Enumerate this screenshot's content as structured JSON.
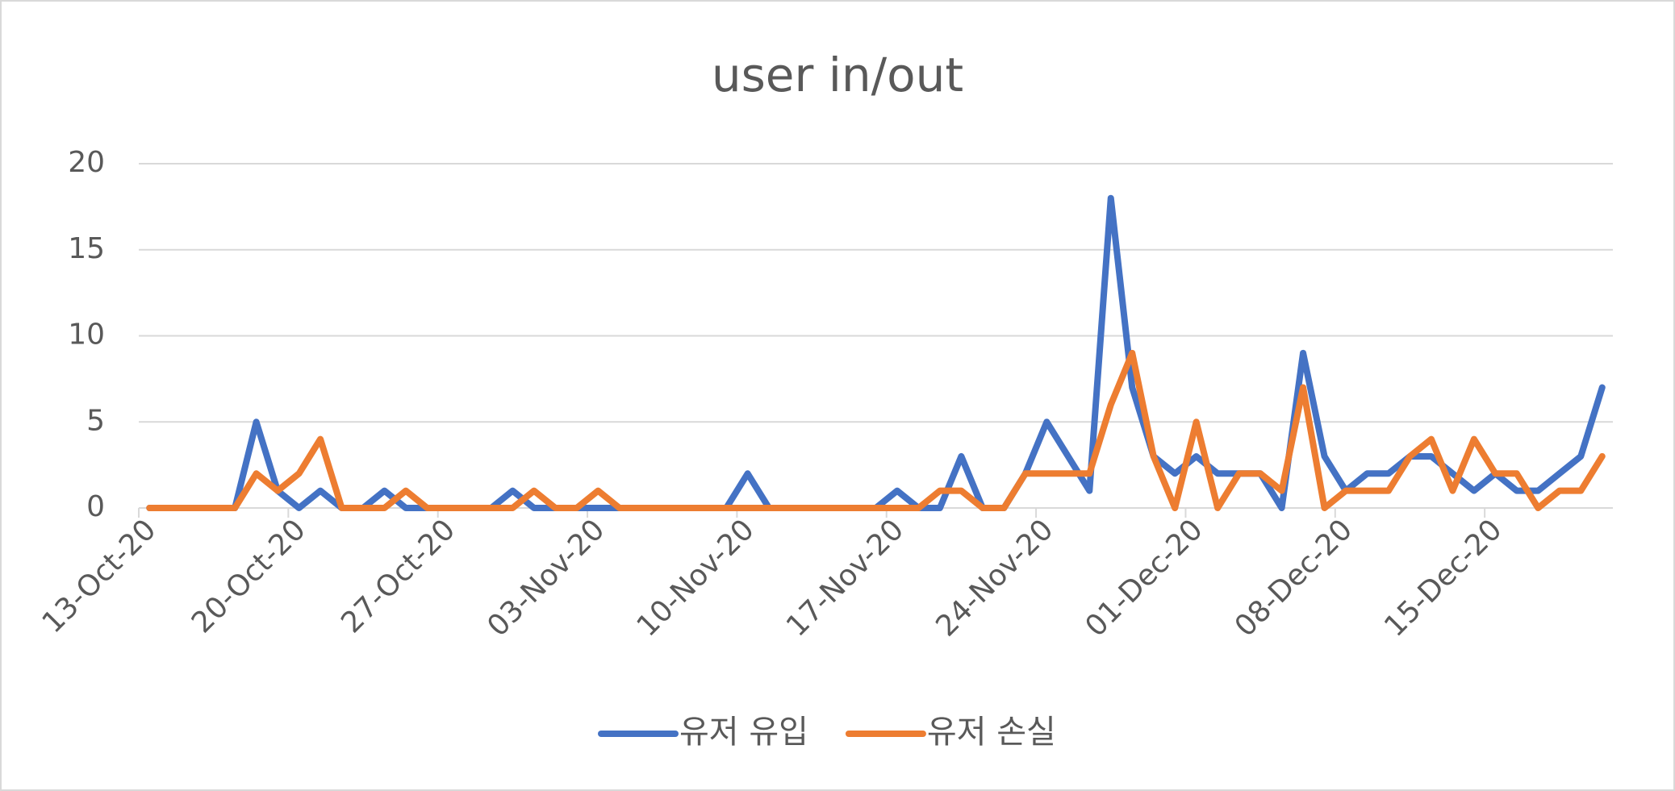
{
  "chart_data": {
    "type": "line",
    "title": "user in/out",
    "x": [
      "2020-10-13",
      "2020-10-14",
      "2020-10-15",
      "2020-10-16",
      "2020-10-17",
      "2020-10-18",
      "2020-10-19",
      "2020-10-20",
      "2020-10-21",
      "2020-10-22",
      "2020-10-23",
      "2020-10-24",
      "2020-10-25",
      "2020-10-26",
      "2020-10-27",
      "2020-10-28",
      "2020-10-29",
      "2020-10-30",
      "2020-10-31",
      "2020-11-01",
      "2020-11-02",
      "2020-11-03",
      "2020-11-04",
      "2020-11-05",
      "2020-11-06",
      "2020-11-07",
      "2020-11-08",
      "2020-11-09",
      "2020-11-10",
      "2020-11-11",
      "2020-11-12",
      "2020-11-13",
      "2020-11-14",
      "2020-11-15",
      "2020-11-16",
      "2020-11-17",
      "2020-11-18",
      "2020-11-19",
      "2020-11-20",
      "2020-11-21",
      "2020-11-22",
      "2020-11-23",
      "2020-11-24",
      "2020-11-25",
      "2020-11-26",
      "2020-11-27",
      "2020-11-28",
      "2020-11-29",
      "2020-11-30",
      "2020-12-01",
      "2020-12-02",
      "2020-12-03",
      "2020-12-04",
      "2020-12-05",
      "2020-12-06",
      "2020-12-07",
      "2020-12-08",
      "2020-12-09",
      "2020-12-10",
      "2020-12-11",
      "2020-12-12",
      "2020-12-13",
      "2020-12-14",
      "2020-12-15",
      "2020-12-16",
      "2020-12-17",
      "2020-12-18",
      "2020-12-19",
      "2020-12-20"
    ],
    "series": [
      {
        "name": "유저 유입",
        "color": "#4472c4",
        "values": [
          0,
          0,
          0,
          0,
          0,
          5,
          1,
          0,
          1,
          0,
          0,
          1,
          0,
          0,
          0,
          0,
          0,
          1,
          0,
          0,
          0,
          0,
          0,
          0,
          0,
          0,
          0,
          0,
          2,
          0,
          0,
          0,
          0,
          0,
          0,
          1,
          0,
          0,
          3,
          0,
          0,
          2,
          5,
          3,
          1,
          18,
          7,
          3,
          2,
          3,
          2,
          2,
          2,
          0,
          9,
          3,
          1,
          2,
          2,
          3,
          3,
          2,
          1,
          2,
          1,
          1,
          2,
          3,
          7
        ]
      },
      {
        "name": "유저 손실",
        "color": "#ed7d31",
        "values": [
          0,
          0,
          0,
          0,
          0,
          2,
          1,
          2,
          4,
          0,
          0,
          0,
          1,
          0,
          0,
          0,
          0,
          0,
          1,
          0,
          0,
          1,
          0,
          0,
          0,
          0,
          0,
          0,
          0,
          0,
          0,
          0,
          0,
          0,
          0,
          0,
          0,
          1,
          1,
          0,
          0,
          2,
          2,
          2,
          2,
          6,
          9,
          3,
          0,
          5,
          0,
          2,
          2,
          1,
          7,
          0,
          1,
          1,
          1,
          3,
          4,
          1,
          4,
          2,
          2,
          0,
          1,
          1,
          3
        ]
      }
    ],
    "xlim": [
      "2020-10-13",
      "2020-12-21"
    ],
    "xticks": [
      {
        "value": "2020-10-13",
        "label": "13-Oct-20"
      },
      {
        "value": "2020-10-20",
        "label": "20-Oct-20"
      },
      {
        "value": "2020-10-27",
        "label": "27-Oct-20"
      },
      {
        "value": "2020-11-03",
        "label": "03-Nov-20"
      },
      {
        "value": "2020-11-10",
        "label": "10-Nov-20"
      },
      {
        "value": "2020-11-17",
        "label": "17-Nov-20"
      },
      {
        "value": "2020-11-24",
        "label": "24-Nov-20"
      },
      {
        "value": "2020-12-01",
        "label": "01-Dec-20"
      },
      {
        "value": "2020-12-08",
        "label": "08-Dec-20"
      },
      {
        "value": "2020-12-15",
        "label": "15-Dec-20"
      }
    ],
    "ylim": [
      0,
      20
    ],
    "yticks": [
      0,
      5,
      10,
      15,
      20
    ],
    "grid": true,
    "legend": "bottom"
  }
}
